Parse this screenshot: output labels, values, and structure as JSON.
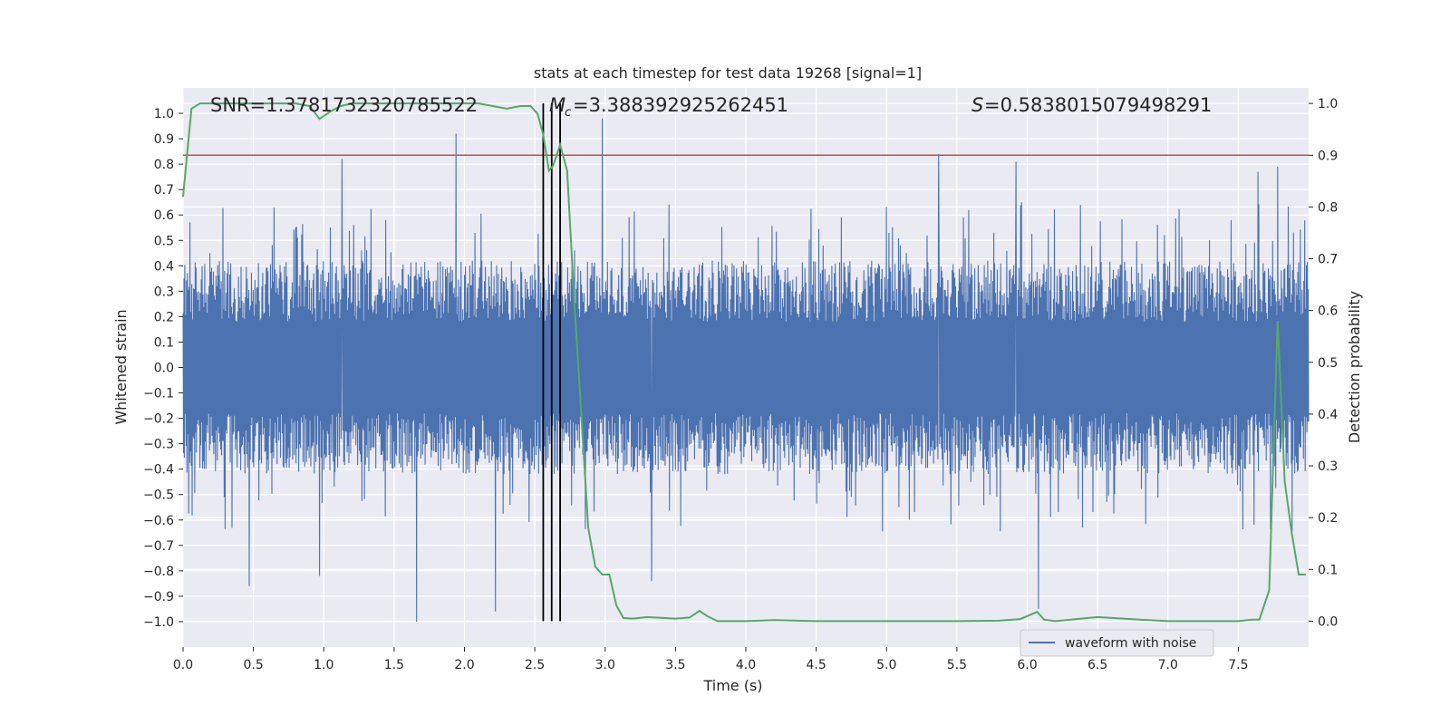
{
  "chart_data": {
    "type": "line",
    "title": "stats at each timestep for test data 19268 [signal=1]",
    "xlabel": "Time (s)",
    "ylabel": "Whitened strain",
    "ylabel_right": "Detection probability",
    "xlim": [
      0.0,
      8.0
    ],
    "ylim": [
      -1.1,
      1.1
    ],
    "ylim_right": [
      -0.05,
      1.03
    ],
    "x_ticks": [
      "0.0",
      "0.5",
      "1.0",
      "1.5",
      "2.0",
      "2.5",
      "3.0",
      "3.5",
      "4.0",
      "4.5",
      "5.0",
      "5.5",
      "6.0",
      "6.5",
      "7.0",
      "7.5"
    ],
    "y_ticks": [
      "1.0",
      "0.9",
      "0.8",
      "0.7",
      "0.6",
      "0.5",
      "0.4",
      "0.3",
      "0.2",
      "0.1",
      "0.0",
      "-0.1",
      "-0.2",
      "-0.3",
      "-0.4",
      "-0.5",
      "-0.6",
      "-0.7",
      "-0.8",
      "-0.9",
      "-1.0"
    ],
    "y_ticks_right": [
      "1.0",
      "0.9",
      "0.8",
      "0.7",
      "0.6",
      "0.5",
      "0.4",
      "0.3",
      "0.2",
      "0.1",
      "0.0"
    ],
    "annotations": {
      "snr": "SNR=1.3781732320785522",
      "mc": "=3.388392925262451",
      "s": "=0.5838015079498291",
      "mc_symbol": "M",
      "mc_subscript": "c",
      "s_symbol": "S"
    },
    "threshold": {
      "axis": "right",
      "value": 0.9,
      "color": "#c44e52"
    },
    "vertical_lines": {
      "x": [
        2.56,
        2.62,
        2.68
      ],
      "color": "#000000"
    },
    "legend": {
      "entries": [
        "waveform with noise"
      ],
      "placement": "lower-right"
    },
    "series": [
      {
        "name": "waveform with noise",
        "axis": "left",
        "color": "#4c72b0",
        "description": "dense noise envelope, approx. -0.45 to 0.45 with spikes",
        "spikes": [
          {
            "x": 0.47,
            "y": -0.86
          },
          {
            "x": 0.97,
            "y": -0.82
          },
          {
            "x": 1.13,
            "y": 0.82
          },
          {
            "x": 1.66,
            "y": -1.0
          },
          {
            "x": 1.94,
            "y": 0.92
          },
          {
            "x": 2.22,
            "y": -0.96
          },
          {
            "x": 2.98,
            "y": 0.98
          },
          {
            "x": 3.33,
            "y": -0.84
          },
          {
            "x": 5.37,
            "y": 0.84
          },
          {
            "x": 5.92,
            "y": 0.81
          },
          {
            "x": 6.08,
            "y": -0.95
          },
          {
            "x": 7.64,
            "y": 0.77
          },
          {
            "x": 7.78,
            "y": 0.79
          }
        ]
      },
      {
        "name": "detection probability",
        "axis": "right",
        "color": "#55a868",
        "x": [
          0.0,
          0.06,
          0.12,
          0.2,
          0.4,
          0.6,
          0.8,
          0.9,
          0.97,
          1.05,
          1.12,
          1.2,
          1.3,
          1.5,
          1.7,
          1.9,
          2.1,
          2.3,
          2.4,
          2.47,
          2.52,
          2.56,
          2.6,
          2.63,
          2.68,
          2.73,
          2.78,
          2.83,
          2.88,
          2.93,
          2.98,
          3.03,
          3.08,
          3.13,
          3.2,
          3.3,
          3.5,
          3.6,
          3.67,
          3.73,
          3.8,
          4.0,
          4.2,
          4.5,
          5.0,
          5.5,
          5.8,
          5.95,
          6.07,
          6.12,
          6.2,
          6.5,
          6.8,
          7.0,
          7.3,
          7.5,
          7.6,
          7.65,
          7.72,
          7.78,
          7.83,
          7.88,
          7.93,
          7.98
        ],
        "y": [
          0.82,
          0.99,
          1.0,
          1.0,
          1.0,
          1.0,
          1.0,
          0.995,
          0.97,
          0.985,
          0.995,
          1.0,
          1.0,
          1.0,
          1.0,
          1.0,
          1.0,
          0.99,
          0.995,
          0.995,
          0.98,
          0.94,
          0.87,
          0.88,
          0.92,
          0.87,
          0.62,
          0.4,
          0.18,
          0.105,
          0.09,
          0.09,
          0.03,
          0.006,
          0.005,
          0.008,
          0.005,
          0.007,
          0.02,
          0.009,
          0.0,
          0.0,
          0.002,
          0.0,
          0.0,
          0.0,
          0.001,
          0.004,
          0.018,
          0.003,
          0.0,
          0.008,
          0.003,
          0.0,
          0.0,
          0.0,
          0.003,
          0.003,
          0.06,
          0.58,
          0.27,
          0.17,
          0.09,
          0.09
        ]
      }
    ]
  }
}
